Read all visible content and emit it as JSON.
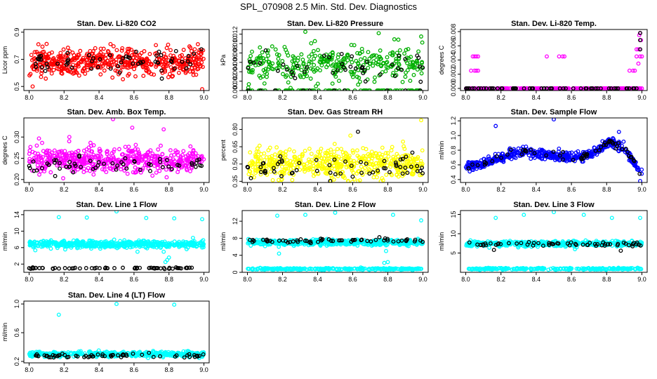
{
  "figure": {
    "title": "SPL_070908  2.5 Min. Std. Dev. Diagnostics"
  },
  "chart_data": [
    {
      "type": "scatter",
      "title": "Stan. Dev. Li-820 CO2",
      "ylabel": "Licor ppm",
      "xlim": [
        7.97,
        9.03
      ],
      "ylim": [
        0.47,
        0.92
      ],
      "xticks": [
        "8.0",
        "8.2",
        "8.4",
        "8.6",
        "8.8",
        "9.0"
      ],
      "xtick_values": [
        8.0,
        8.2,
        8.4,
        8.6,
        8.8,
        9.0
      ],
      "yticks": [
        "0.5",
        "0.7",
        "0.9"
      ],
      "ytick_values": [
        0.5,
        0.7,
        0.9
      ],
      "series": [
        {
          "color": "#ff0000",
          "values": {
            "x_range": [
              8.0,
              9.0
            ],
            "n": 520,
            "level": 0.68,
            "spread": 0.07,
            "outliers": [
              [
                8.02,
                0.5
              ],
              [
                8.99,
                0.48
              ]
            ]
          }
        },
        {
          "color": "#000000",
          "values": {
            "x_range": [
              8.0,
              9.0
            ],
            "n": 60,
            "level": 0.68,
            "spread": 0.06,
            "outliers": []
          }
        }
      ]
    },
    {
      "type": "scatter",
      "title": "Stan. Dev. Li-820 Pressure",
      "ylabel": "kPa",
      "xlim": [
        7.97,
        9.03
      ],
      "ylim": [
        0.0,
        0.013
      ],
      "xticks": [
        "8.0",
        "8.2",
        "8.4",
        "8.6",
        "8.8",
        "9.0"
      ],
      "xtick_values": [
        8.0,
        8.2,
        8.4,
        8.6,
        8.8,
        9.0
      ],
      "yticks": [
        "0.000",
        "0.002",
        "0.004",
        "0.006",
        "0.008",
        "0.010",
        "0.012"
      ],
      "ytick_values": [
        0.0,
        0.002,
        0.004,
        0.006,
        0.008,
        0.01,
        0.012
      ],
      "series": [
        {
          "color": "#00b000",
          "values": {
            "x_range": [
              8.0,
              9.0
            ],
            "n": 420,
            "level": 0.0055,
            "spread": 0.0026,
            "floor": 0.0,
            "floor_frac": 0.18,
            "outliers": [
              [
                8.33,
                0.0125
              ],
              [
                8.99,
                0.0115
              ]
            ]
          }
        },
        {
          "color": "#000000",
          "values": {
            "x_range": [
              8.0,
              9.0
            ],
            "n": 55,
            "level": 0.0045,
            "spread": 0.0022,
            "floor": 0.0,
            "floor_frac": 0.2,
            "outliers": []
          }
        }
      ]
    },
    {
      "type": "scatter",
      "title": "Stan. Dev. Li-820 Temp.",
      "ylabel": "degrees C",
      "xlim": [
        7.97,
        9.03
      ],
      "ylim": [
        -0.0003,
        0.0083
      ],
      "xticks": [
        "8.0",
        "8.2",
        "8.4",
        "8.6",
        "8.8",
        "9.0"
      ],
      "xtick_values": [
        8.0,
        8.2,
        8.4,
        8.6,
        8.8,
        9.0
      ],
      "yticks": [
        "0.000",
        "0.002",
        "0.004",
        "0.006",
        "0.008"
      ],
      "ytick_values": [
        0.0,
        0.002,
        0.004,
        0.006,
        0.008
      ],
      "series": [
        {
          "color": "#ff00ff",
          "values": {
            "x_range": [
              8.0,
              9.0
            ],
            "n": 260,
            "level": 0.0,
            "spread": 0.0,
            "outliers": [
              [
                8.04,
                0.0045
              ],
              [
                8.05,
                0.0045
              ],
              [
                8.06,
                0.0045
              ],
              [
                8.07,
                0.0045
              ],
              [
                8.03,
                0.0025
              ],
              [
                8.05,
                0.0025
              ],
              [
                8.06,
                0.0025
              ],
              [
                8.07,
                0.0025
              ],
              [
                8.46,
                0.0045
              ],
              [
                8.53,
                0.0045
              ],
              [
                8.55,
                0.0045
              ],
              [
                8.56,
                0.0045
              ],
              [
                8.93,
                0.0025
              ],
              [
                8.95,
                0.0025
              ],
              [
                8.96,
                0.0025
              ],
              [
                8.97,
                0.0045
              ],
              [
                8.98,
                0.0055
              ],
              [
                8.99,
                0.0055
              ],
              [
                8.985,
                0.0075
              ],
              [
                8.99,
                0.0078
              ],
              [
                8.995,
                0.0068
              ],
              [
                8.98,
                0.0035
              ],
              [
                9.0,
                0.0045
              ],
              [
                8.97,
                0.0055
              ],
              [
                8.99,
                0.0045
              ]
            ]
          }
        },
        {
          "color": "#000000",
          "values": {
            "x_range": [
              8.0,
              9.0
            ],
            "n": 60,
            "level": 0.0,
            "spread": 0.0,
            "outliers": [
              [
                8.99,
                0.0078
              ],
              [
                8.99,
                0.0068
              ],
              [
                8.99,
                0.0055
              ]
            ]
          }
        }
      ]
    },
    {
      "type": "scatter",
      "title": "Stan. Dev. Amb. Box Temp.",
      "ylabel": "degrees C",
      "xlim": [
        7.97,
        9.03
      ],
      "ylim": [
        0.193,
        0.345
      ],
      "xticks": [
        "8.0",
        "8.2",
        "8.4",
        "8.6",
        "8.8",
        "9.0"
      ],
      "xtick_values": [
        8.0,
        8.2,
        8.4,
        8.6,
        8.8,
        9.0
      ],
      "yticks": [
        "0.20",
        "0.25",
        "0.30"
      ],
      "ytick_values": [
        0.2,
        0.25,
        0.3
      ],
      "series": [
        {
          "color": "#ff00ff",
          "values": {
            "x_range": [
              8.0,
              9.0
            ],
            "n": 520,
            "level": 0.245,
            "spread": 0.022,
            "outliers": [
              [
                8.48,
                0.342
              ],
              [
                8.59,
                0.322
              ],
              [
                8.77,
                0.318
              ],
              [
                8.23,
                0.3
              ]
            ]
          }
        },
        {
          "color": "#000000",
          "values": {
            "x_range": [
              8.0,
              9.0
            ],
            "n": 60,
            "level": 0.233,
            "spread": 0.012,
            "outliers": []
          }
        }
      ]
    },
    {
      "type": "scatter",
      "title": "Stan. Dev. Gas Stream RH",
      "ylabel": "percent",
      "xlim": [
        7.97,
        9.03
      ],
      "ylim": [
        0.34,
        0.9
      ],
      "xticks": [
        "8.0",
        "8.2",
        "8.4",
        "8.6",
        "8.8",
        "9.0"
      ],
      "xtick_values": [
        8.0,
        8.2,
        8.4,
        8.6,
        8.8,
        9.0
      ],
      "yticks": [
        "0.35",
        "0.50",
        "0.65",
        "0.80"
      ],
      "ytick_values": [
        0.35,
        0.5,
        0.65,
        0.8
      ],
      "series": [
        {
          "color": "#ffff00",
          "values": {
            "x_range": [
              8.0,
              9.0
            ],
            "n": 520,
            "level": 0.5,
            "spread": 0.09,
            "outliers": [
              [
                8.99,
                0.88
              ]
            ]
          }
        },
        {
          "color": "#000000",
          "values": {
            "x_range": [
              8.0,
              9.0
            ],
            "n": 60,
            "level": 0.47,
            "spread": 0.07,
            "outliers": [
              [
                8.63,
                0.78
              ]
            ]
          }
        }
      ]
    },
    {
      "type": "scatter",
      "title": "Stan. Dev. Sample Flow",
      "ylabel": "ml/min",
      "xlim": [
        7.97,
        9.03
      ],
      "ylim": [
        0.36,
        1.24
      ],
      "xticks": [
        "8.0",
        "8.2",
        "8.4",
        "8.6",
        "8.8",
        "9.0"
      ],
      "xtick_values": [
        8.0,
        8.2,
        8.4,
        8.6,
        8.8,
        9.0
      ],
      "yticks": [
        "0.4",
        "0.6",
        "0.8",
        "1.0",
        "1.2"
      ],
      "ytick_values": [
        0.4,
        0.6,
        0.8,
        1.0,
        1.2
      ],
      "series": [
        {
          "color": "#0000ff",
          "values": {
            "x_range": [
              8.0,
              9.0
            ],
            "n": 520,
            "trend": [
              [
                8.0,
                0.56
              ],
              [
                8.15,
                0.65
              ],
              [
                8.3,
                0.78
              ],
              [
                8.45,
                0.74
              ],
              [
                8.6,
                0.7
              ],
              [
                8.72,
                0.75
              ],
              [
                8.82,
                0.92
              ],
              [
                8.9,
                0.82
              ],
              [
                9.0,
                0.5
              ]
            ],
            "spread": 0.045,
            "outliers": [
              [
                8.17,
                1.13
              ],
              [
                8.5,
                1.22
              ],
              [
                8.87,
                1.05
              ],
              [
                8.99,
                0.38
              ]
            ]
          }
        },
        {
          "color": "#000000",
          "values": {
            "x_range": [
              8.0,
              9.0
            ],
            "n": 60,
            "trend": [
              [
                8.0,
                0.56
              ],
              [
                8.15,
                0.65
              ],
              [
                8.3,
                0.8
              ],
              [
                8.45,
                0.74
              ],
              [
                8.6,
                0.7
              ],
              [
                8.72,
                0.75
              ],
              [
                8.82,
                0.92
              ],
              [
                8.9,
                0.82
              ],
              [
                9.0,
                0.5
              ]
            ],
            "spread": 0.04,
            "outliers": []
          }
        }
      ]
    },
    {
      "type": "scatter",
      "title": "Stan. Dev. Line 1 Flow",
      "ylabel": "ml/min",
      "xlim": [
        7.97,
        9.03
      ],
      "ylim": [
        0.0,
        15.0
      ],
      "xticks": [
        "8.0",
        "8.2",
        "8.4",
        "8.6",
        "8.8",
        "9.0"
      ],
      "xtick_values": [
        8.0,
        8.2,
        8.4,
        8.6,
        8.8,
        9.0
      ],
      "yticks": [
        "2",
        "6",
        "10",
        "14"
      ],
      "ytick_values": [
        2,
        6,
        10,
        14
      ],
      "series": [
        {
          "color": "#00ffff",
          "values": {
            "x_range": [
              8.0,
              9.0
            ],
            "n": 520,
            "level": 6.8,
            "spread": 0.6,
            "outliers": [
              [
                8.17,
                13.4
              ],
              [
                8.33,
                13.3
              ],
              [
                8.5,
                14.8
              ],
              [
                8.67,
                13.2
              ],
              [
                8.83,
                13.1
              ],
              [
                8.99,
                12.9
              ],
              [
                8.78,
                2.5
              ],
              [
                8.79,
                3.0
              ],
              [
                8.8,
                3.6
              ],
              [
                8.62,
                5.0
              ],
              [
                8.77,
                5.0
              ]
            ]
          }
        },
        {
          "color": "#000000",
          "values": {
            "x_range": [
              8.0,
              9.0
            ],
            "n": 65,
            "level": 1.0,
            "spread": 0.12,
            "outliers": []
          }
        }
      ]
    },
    {
      "type": "scatter",
      "title": "Stan. Dev. Line 2 Flow",
      "ylabel": "ml/min",
      "xlim": [
        7.97,
        9.03
      ],
      "ylim": [
        0.0,
        14.5
      ],
      "xticks": [
        "8.0",
        "8.2",
        "8.4",
        "8.6",
        "8.8",
        "9.0"
      ],
      "xtick_values": [
        8.0,
        8.2,
        8.4,
        8.6,
        8.8,
        9.0
      ],
      "yticks": [
        "0",
        "4",
        "8",
        "12"
      ],
      "ytick_values": [
        0,
        4,
        8,
        12
      ],
      "series": [
        {
          "color": "#00ffff",
          "values": {
            "x_range": [
              8.0,
              9.0
            ],
            "n": 480,
            "level": 7.0,
            "spread": 0.45,
            "outliers": [
              [
                8.17,
                13.3
              ],
              [
                8.33,
                13.5
              ],
              [
                8.5,
                14.0
              ],
              [
                8.83,
                13.5
              ],
              [
                8.99,
                12.2
              ],
              [
                8.78,
                2.2
              ],
              [
                8.8,
                2.4
              ],
              [
                8.18,
                4.4
              ],
              [
                8.79,
                5.0
              ]
            ]
          }
        },
        {
          "color": "#00ffff",
          "values": {
            "x_range": [
              8.0,
              9.0
            ],
            "n": 260,
            "level": 0.8,
            "spread": 0.15,
            "outliers": []
          }
        },
        {
          "color": "#000000",
          "values": {
            "x_range": [
              8.0,
              9.0
            ],
            "n": 60,
            "level": 7.4,
            "spread": 0.35,
            "outliers": []
          }
        }
      ]
    },
    {
      "type": "scatter",
      "title": "Stan. Dev. Line 3 Flow",
      "ylabel": "ml/min",
      "xlim": [
        7.97,
        9.03
      ],
      "ylim": [
        0.0,
        16.0
      ],
      "xticks": [
        "8.0",
        "8.2",
        "8.4",
        "8.6",
        "8.8",
        "9.0"
      ],
      "xtick_values": [
        8.0,
        8.2,
        8.4,
        8.6,
        8.8,
        9.0
      ],
      "yticks": [
        "5",
        "10",
        "15"
      ],
      "ytick_values": [
        5,
        10,
        15
      ],
      "series": [
        {
          "color": "#00ffff",
          "values": {
            "x_range": [
              8.0,
              9.0
            ],
            "n": 480,
            "level": 7.4,
            "spread": 0.45,
            "outliers": [
              [
                8.17,
                14.1
              ],
              [
                8.33,
                14.9
              ],
              [
                8.5,
                15.6
              ],
              [
                8.67,
                14.9
              ],
              [
                8.83,
                14.1
              ],
              [
                8.99,
                14.1
              ],
              [
                8.62,
                6.0
              ],
              [
                8.63,
                6.5
              ]
            ]
          }
        },
        {
          "color": "#00ffff",
          "values": {
            "x_range": [
              8.0,
              9.0
            ],
            "n": 260,
            "level": 0.9,
            "spread": 0.15,
            "outliers": []
          }
        },
        {
          "color": "#000000",
          "values": {
            "x_range": [
              8.0,
              9.0
            ],
            "n": 60,
            "level": 7.3,
            "spread": 0.4,
            "outliers": [
              [
                8.16,
                5.8
              ],
              [
                8.88,
                5.6
              ]
            ]
          }
        }
      ]
    },
    {
      "type": "scatter",
      "title": "Stan. Dev. Line 4 (LT) Flow",
      "ylabel": "ml/min",
      "xlim": [
        7.97,
        9.03
      ],
      "ylim": [
        0.18,
        1.04
      ],
      "xticks": [
        "8.0",
        "8.2",
        "8.4",
        "8.6",
        "8.8",
        "9.0"
      ],
      "xtick_values": [
        8.0,
        8.2,
        8.4,
        8.6,
        8.8,
        9.0
      ],
      "yticks": [
        "0.2",
        "0.6",
        "1.0"
      ],
      "ytick_values": [
        0.2,
        0.6,
        1.0
      ],
      "series": [
        {
          "color": "#00ffff",
          "values": {
            "x_range": [
              8.0,
              9.0
            ],
            "n": 480,
            "level": 0.3,
            "spread": 0.025,
            "outliers": [
              [
                8.17,
                0.85
              ],
              [
                8.5,
                1.0
              ],
              [
                8.83,
                0.99
              ]
            ]
          }
        },
        {
          "color": "#000000",
          "values": {
            "x_range": [
              8.0,
              9.0
            ],
            "n": 60,
            "level": 0.28,
            "spread": 0.025,
            "outliers": []
          }
        }
      ]
    }
  ]
}
